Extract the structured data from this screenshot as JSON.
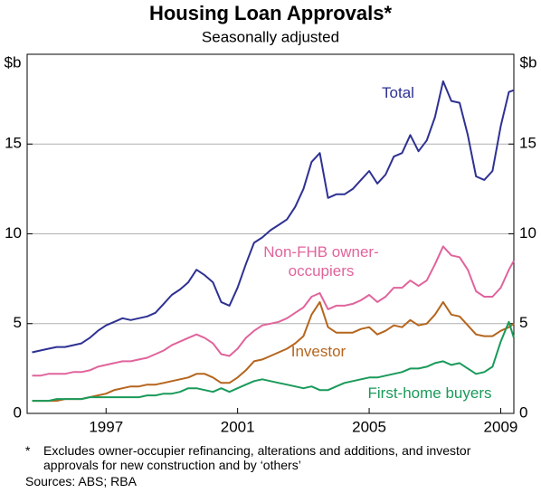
{
  "chart_data": {
    "type": "line",
    "title": "Housing Loan Approvals*",
    "subtitle": "Seasonally adjusted",
    "y_label": "$b",
    "footnote_marker": "*",
    "footnote": "Excludes owner-occupier refinancing, alterations and additions, and investor approvals for new construction and by ‘others’",
    "sources": "Sources: ABS; RBA",
    "x": [
      1994.75,
      1995,
      1995.25,
      1995.5,
      1995.75,
      1996,
      1996.25,
      1996.5,
      1996.75,
      1997,
      1997.25,
      1997.5,
      1997.75,
      1998,
      1998.25,
      1998.5,
      1998.75,
      1999,
      1999.25,
      1999.5,
      1999.75,
      2000,
      2000.25,
      2000.5,
      2000.75,
      2001,
      2001.25,
      2001.5,
      2001.75,
      2002,
      2002.25,
      2002.5,
      2002.75,
      2003,
      2003.25,
      2003.5,
      2003.75,
      2004,
      2004.25,
      2004.5,
      2004.75,
      2005,
      2005.25,
      2005.5,
      2005.75,
      2006,
      2006.25,
      2006.5,
      2006.75,
      2007,
      2007.25,
      2007.5,
      2007.75,
      2008,
      2008.25,
      2008.5,
      2008.75,
      2009,
      2009.25,
      2009.4
    ],
    "series": [
      {
        "name": "Total",
        "color": "#2e3192",
        "values": [
          3.4,
          3.5,
          3.6,
          3.7,
          3.7,
          3.8,
          3.9,
          4.2,
          4.6,
          4.9,
          5.1,
          5.3,
          5.2,
          5.3,
          5.4,
          5.6,
          6.1,
          6.6,
          6.9,
          7.3,
          8.0,
          7.7,
          7.3,
          6.2,
          6.0,
          7.0,
          8.3,
          9.5,
          9.8,
          10.2,
          10.5,
          10.8,
          11.5,
          12.5,
          14.0,
          14.5,
          12.0,
          12.2,
          12.2,
          12.5,
          13.0,
          13.5,
          12.8,
          13.3,
          14.3,
          14.5,
          15.5,
          14.6,
          15.2,
          16.5,
          18.5,
          17.4,
          17.3,
          15.5,
          13.2,
          13.0,
          13.5,
          16.0,
          17.9,
          18.0
        ]
      },
      {
        "name": "Non-FHB owner-occupiers",
        "color": "#e0649c",
        "values": [
          2.1,
          2.1,
          2.2,
          2.2,
          2.2,
          2.3,
          2.3,
          2.4,
          2.6,
          2.7,
          2.8,
          2.9,
          2.9,
          3.0,
          3.1,
          3.3,
          3.5,
          3.8,
          4.0,
          4.2,
          4.4,
          4.2,
          3.9,
          3.3,
          3.2,
          3.6,
          4.2,
          4.6,
          4.9,
          5.0,
          5.1,
          5.3,
          5.6,
          5.9,
          6.5,
          6.7,
          5.8,
          6.0,
          6.0,
          6.1,
          6.3,
          6.6,
          6.2,
          6.5,
          7.0,
          7.0,
          7.4,
          7.1,
          7.4,
          8.3,
          9.3,
          8.8,
          8.7,
          8.0,
          6.8,
          6.5,
          6.5,
          7.0,
          8.0,
          8.5
        ]
      },
      {
        "name": "Investor",
        "color": "#b5651d",
        "values": [
          0.7,
          0.7,
          0.7,
          0.7,
          0.8,
          0.8,
          0.8,
          0.9,
          1.0,
          1.1,
          1.3,
          1.4,
          1.5,
          1.5,
          1.6,
          1.6,
          1.7,
          1.8,
          1.9,
          2.0,
          2.2,
          2.2,
          2.0,
          1.7,
          1.7,
          2.0,
          2.4,
          2.9,
          3.0,
          3.2,
          3.4,
          3.6,
          3.9,
          4.3,
          5.5,
          6.2,
          4.8,
          4.5,
          4.5,
          4.5,
          4.7,
          4.8,
          4.4,
          4.6,
          4.9,
          4.8,
          5.2,
          4.9,
          5.0,
          5.5,
          6.2,
          5.5,
          5.4,
          4.9,
          4.4,
          4.3,
          4.3,
          4.6,
          4.8,
          5.0
        ]
      },
      {
        "name": "First-home buyers",
        "color": "#1a9a5a",
        "values": [
          0.7,
          0.7,
          0.7,
          0.8,
          0.8,
          0.8,
          0.8,
          0.9,
          0.9,
          0.9,
          0.9,
          0.9,
          0.9,
          0.9,
          1.0,
          1.0,
          1.1,
          1.1,
          1.2,
          1.4,
          1.4,
          1.3,
          1.2,
          1.4,
          1.2,
          1.4,
          1.6,
          1.8,
          1.9,
          1.8,
          1.7,
          1.6,
          1.5,
          1.4,
          1.5,
          1.3,
          1.3,
          1.5,
          1.7,
          1.8,
          1.9,
          2.0,
          2.0,
          2.1,
          2.2,
          2.3,
          2.5,
          2.5,
          2.6,
          2.8,
          2.9,
          2.7,
          2.8,
          2.5,
          2.2,
          2.3,
          2.6,
          4.0,
          5.1,
          4.2
        ]
      }
    ],
    "xlim": [
      1994.6,
      2009.4
    ],
    "xticks": [
      1997,
      2001,
      2005,
      2009
    ],
    "ylim": [
      0,
      20
    ],
    "yticks": [
      0,
      5,
      10,
      15
    ],
    "grid": true
  }
}
